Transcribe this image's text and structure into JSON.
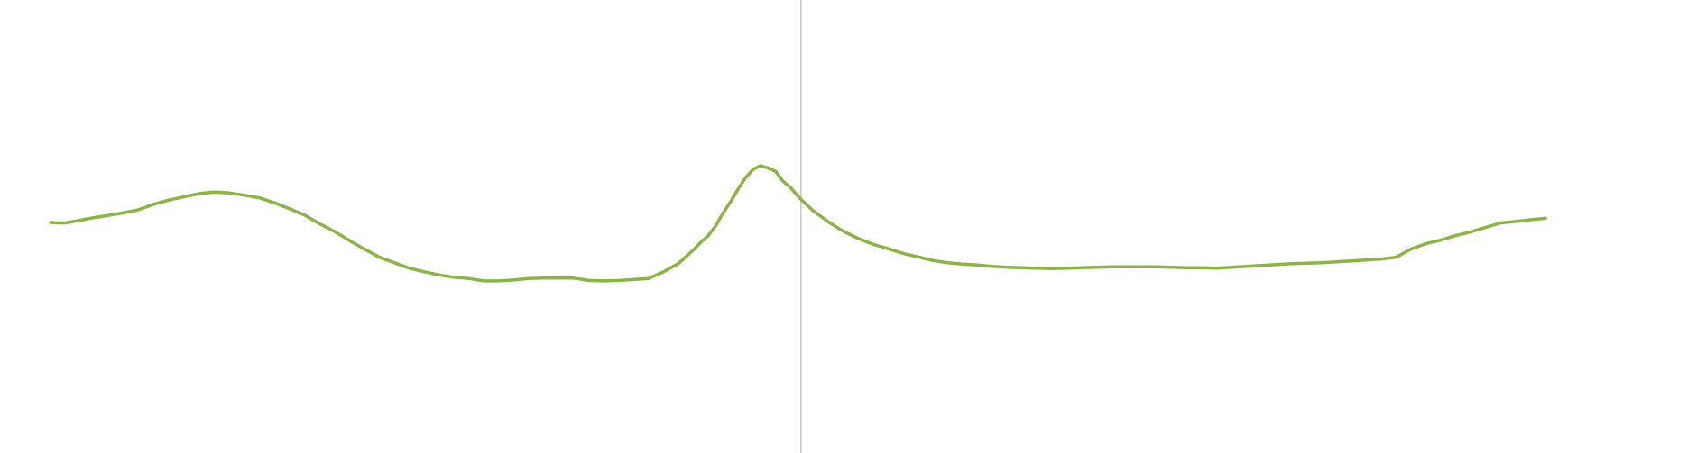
{
  "chart_data": {
    "type": "line",
    "title": "",
    "xlabel": "",
    "ylabel": "",
    "grid": false,
    "legend": "none",
    "x_range": [
      0,
      100
    ],
    "ylim": [
      0,
      100
    ],
    "cursor_x": 50.2,
    "colors": {
      "series": "#8ab446",
      "cursor": "#c8c8c8"
    },
    "series": [
      {
        "x": [
          0.0,
          0.4,
          1.0,
          2.0,
          3.0,
          4.0,
          5.0,
          5.8,
          7.0,
          8.0,
          9.0,
          10.0,
          11.0,
          12.0,
          13.0,
          14.0,
          15.0,
          16.0,
          17.0,
          18.0,
          19.0,
          20.0,
          21.0,
          22.0,
          23.0,
          24.0,
          25.0,
          26.0,
          27.0,
          28.0,
          29.0,
          30.0,
          31.0,
          32.0,
          33.0,
          34.0,
          35.0,
          36.0,
          37.0,
          38.0,
          39.0,
          40.0,
          41.0,
          42.0,
          43.0,
          43.5,
          44.0,
          44.5,
          45.0,
          45.5,
          46.0,
          46.5,
          47.0,
          47.5,
          48.0,
          48.5,
          49.0,
          49.5,
          50.2,
          51.0,
          52.0,
          53.0,
          54.0,
          55.0,
          56.0,
          57.0,
          58.0,
          59.0,
          60.0,
          61.0,
          62.0,
          63.0,
          64.0,
          65.0,
          66.0,
          67.0,
          68.0,
          69.0,
          70.0,
          71.0,
          72.0,
          73.0,
          74.0,
          75.0,
          76.0,
          77.0,
          78.0,
          79.0,
          80.0,
          81.0,
          82.0,
          83.0,
          84.0,
          85.0,
          86.0,
          87.0,
          88.0,
          89.0,
          90.0,
          91.0,
          92.0,
          93.0,
          94.0,
          95.0,
          96.0,
          97.0,
          98.0,
          99.0,
          100.0
        ],
        "y": [
          50.9,
          50.8,
          50.8,
          51.4,
          52.0,
          52.5,
          53.1,
          53.6,
          55.0,
          55.9,
          56.6,
          57.3,
          57.6,
          57.4,
          56.9,
          56.3,
          55.2,
          53.9,
          52.5,
          50.6,
          48.9,
          46.9,
          45.0,
          43.2,
          42.0,
          40.8,
          40.0,
          39.3,
          38.8,
          38.5,
          38.0,
          38.0,
          38.2,
          38.5,
          38.6,
          38.6,
          38.6,
          38.1,
          38.0,
          38.1,
          38.3,
          38.5,
          40.0,
          41.8,
          44.8,
          46.5,
          48.0,
          50.2,
          53.0,
          55.5,
          58.3,
          60.8,
          62.6,
          63.4,
          62.9,
          62.2,
          60.0,
          58.6,
          56.0,
          53.5,
          51.1,
          49.0,
          47.4,
          46.1,
          45.1,
          44.1,
          43.3,
          42.5,
          42.0,
          41.7,
          41.5,
          41.2,
          41.0,
          40.9,
          40.8,
          40.7,
          40.8,
          40.9,
          41.0,
          41.1,
          41.1,
          41.1,
          41.1,
          41.0,
          40.9,
          40.9,
          40.8,
          41.0,
          41.2,
          41.4,
          41.6,
          41.8,
          41.9,
          42.0,
          42.2,
          42.4,
          42.6,
          42.8,
          43.2,
          45.0,
          46.2,
          47.0,
          48.0,
          48.8,
          49.8,
          50.8,
          51.1,
          51.5,
          51.8
        ]
      }
    ]
  }
}
